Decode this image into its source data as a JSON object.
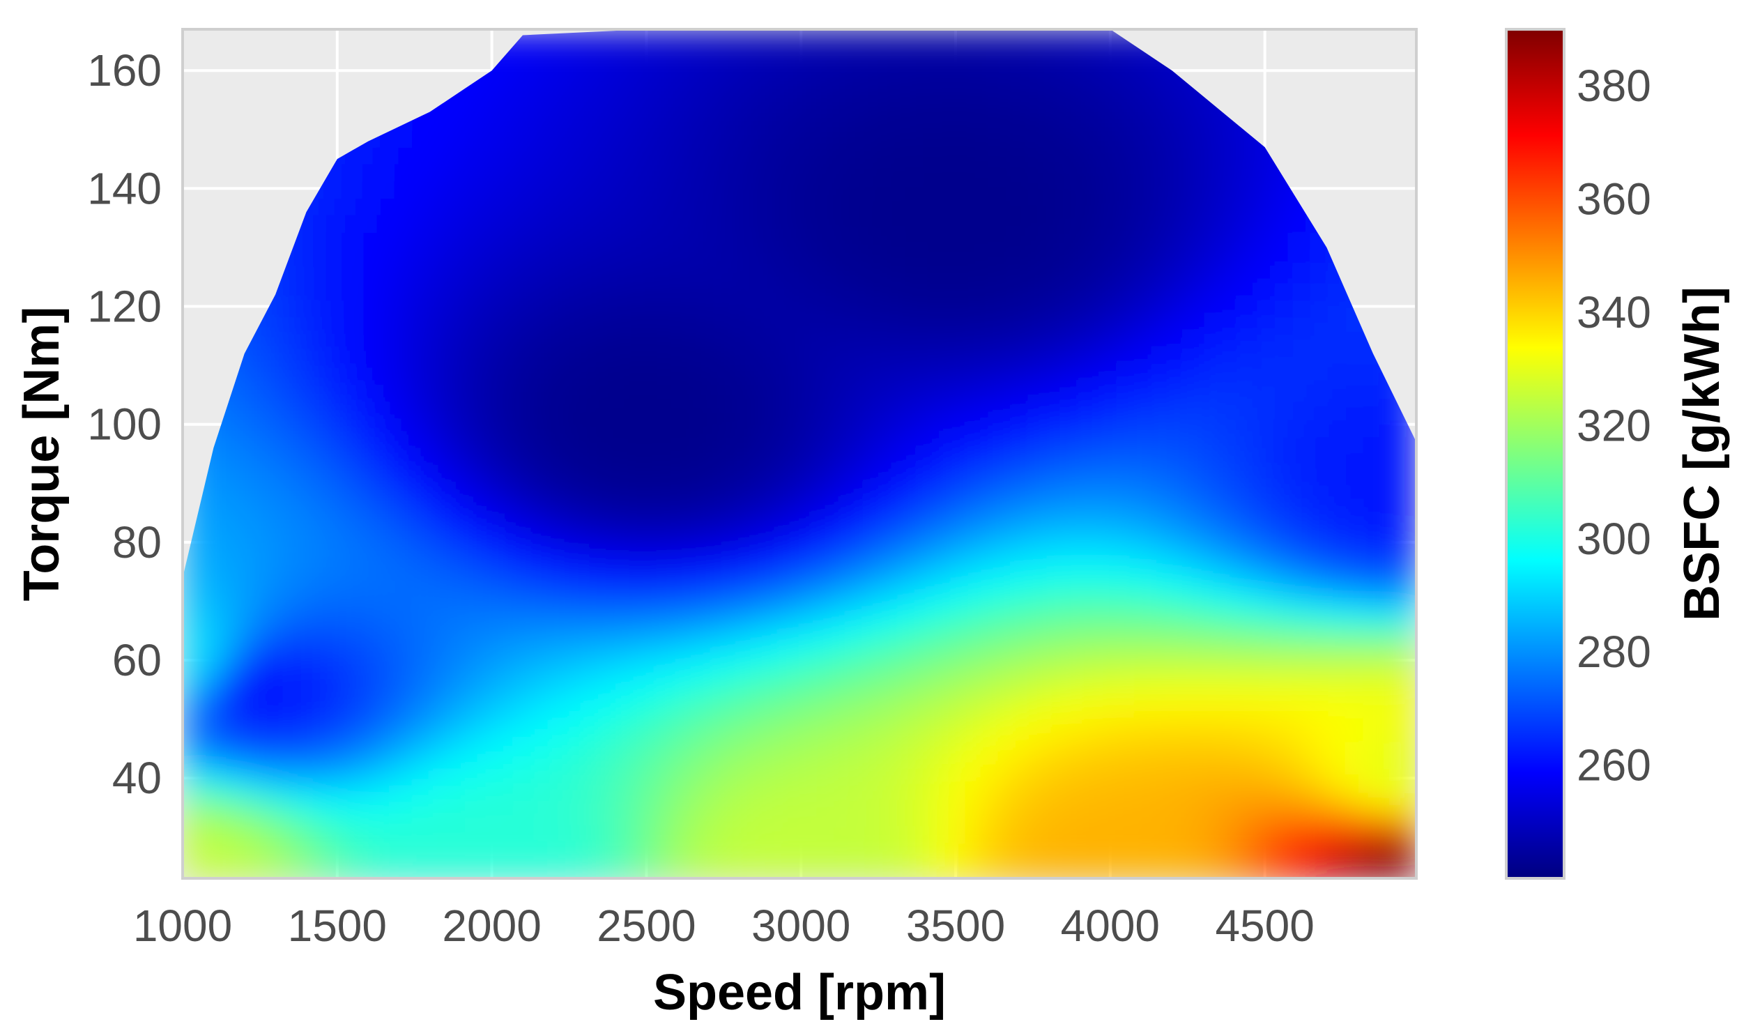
{
  "chart_data": {
    "type": "heatmap",
    "xlabel": "Speed [rpm]",
    "ylabel": "Torque [Nm]",
    "colorbar_label": "BSFC [g/kWh]",
    "xlim": [
      1000,
      4990
    ],
    "ylim": [
      23,
      167
    ],
    "x_ticks": [
      1000,
      1500,
      2000,
      2500,
      3000,
      3500,
      4000,
      4500
    ],
    "y_ticks": [
      40,
      60,
      80,
      100,
      120,
      140,
      160
    ],
    "colorbar_range": [
      240,
      390
    ],
    "colorbar_ticks": [
      260,
      280,
      300,
      320,
      340,
      360,
      380
    ],
    "colormap": [
      "#00007f",
      "#0000ff",
      "#007fff",
      "#00ffff",
      "#7fff7f",
      "#ffff00",
      "#ff7f00",
      "#ff0000",
      "#7f0000"
    ],
    "panel_background": "#ebebeb",
    "grid": true,
    "max_torque_envelope": [
      {
        "speed": 1000,
        "torque": 74
      },
      {
        "speed": 1100,
        "torque": 96
      },
      {
        "speed": 1200,
        "torque": 112
      },
      {
        "speed": 1300,
        "torque": 122
      },
      {
        "speed": 1400,
        "torque": 136
      },
      {
        "speed": 1500,
        "torque": 145
      },
      {
        "speed": 1600,
        "torque": 148
      },
      {
        "speed": 1800,
        "torque": 153
      },
      {
        "speed": 2000,
        "torque": 160
      },
      {
        "speed": 2100,
        "torque": 166
      },
      {
        "speed": 2500,
        "torque": 167
      },
      {
        "speed": 3000,
        "torque": 167
      },
      {
        "speed": 3500,
        "torque": 167
      },
      {
        "speed": 4000,
        "torque": 167
      },
      {
        "speed": 4200,
        "torque": 160
      },
      {
        "speed": 4500,
        "torque": 147
      },
      {
        "speed": 4700,
        "torque": 130
      },
      {
        "speed": 4850,
        "torque": 112
      },
      {
        "speed": 4990,
        "torque": 97
      }
    ],
    "bsfc_features": [
      {
        "speed": 1000,
        "torque": 24,
        "bsfc": 325
      },
      {
        "speed": 2000,
        "torque": 24,
        "bsfc": 302
      },
      {
        "speed": 3000,
        "torque": 24,
        "bsfc": 325
      },
      {
        "speed": 4000,
        "torque": 24,
        "bsfc": 345
      },
      {
        "speed": 4990,
        "torque": 24,
        "bsfc": 390
      },
      {
        "speed": 4990,
        "torque": 40,
        "bsfc": 330
      },
      {
        "speed": 1000,
        "torque": 60,
        "bsfc": 292
      },
      {
        "speed": 1250,
        "torque": 55,
        "bsfc": 262
      },
      {
        "speed": 2500,
        "torque": 100,
        "bsfc": 242
      },
      {
        "speed": 3500,
        "torque": 135,
        "bsfc": 242
      },
      {
        "speed": 4990,
        "torque": 90,
        "bsfc": 262
      }
    ]
  }
}
